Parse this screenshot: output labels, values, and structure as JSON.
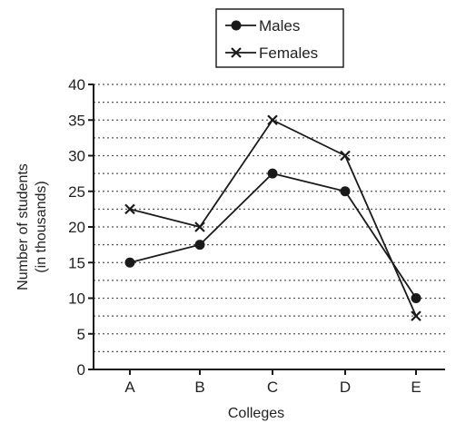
{
  "chart_data": {
    "type": "line",
    "categories": [
      "A",
      "B",
      "C",
      "D",
      "E"
    ],
    "series": [
      {
        "name": "Males",
        "marker": "circle",
        "values": [
          15,
          17.5,
          27.5,
          25,
          10
        ]
      },
      {
        "name": "Females",
        "marker": "cross",
        "values": [
          22.5,
          20,
          35,
          30,
          7.5
        ]
      }
    ],
    "xlabel": "Colleges",
    "ylabel_line1": "Number of students",
    "ylabel_line2": "(in thousands)",
    "ylim": [
      0,
      40
    ],
    "yticks": [
      0,
      5,
      10,
      15,
      20,
      25,
      30,
      35,
      40
    ],
    "grid": "horizontal dotted",
    "legend_position": "top",
    "colors": {
      "line": "#1a1a1a",
      "grid": "#555555"
    }
  }
}
